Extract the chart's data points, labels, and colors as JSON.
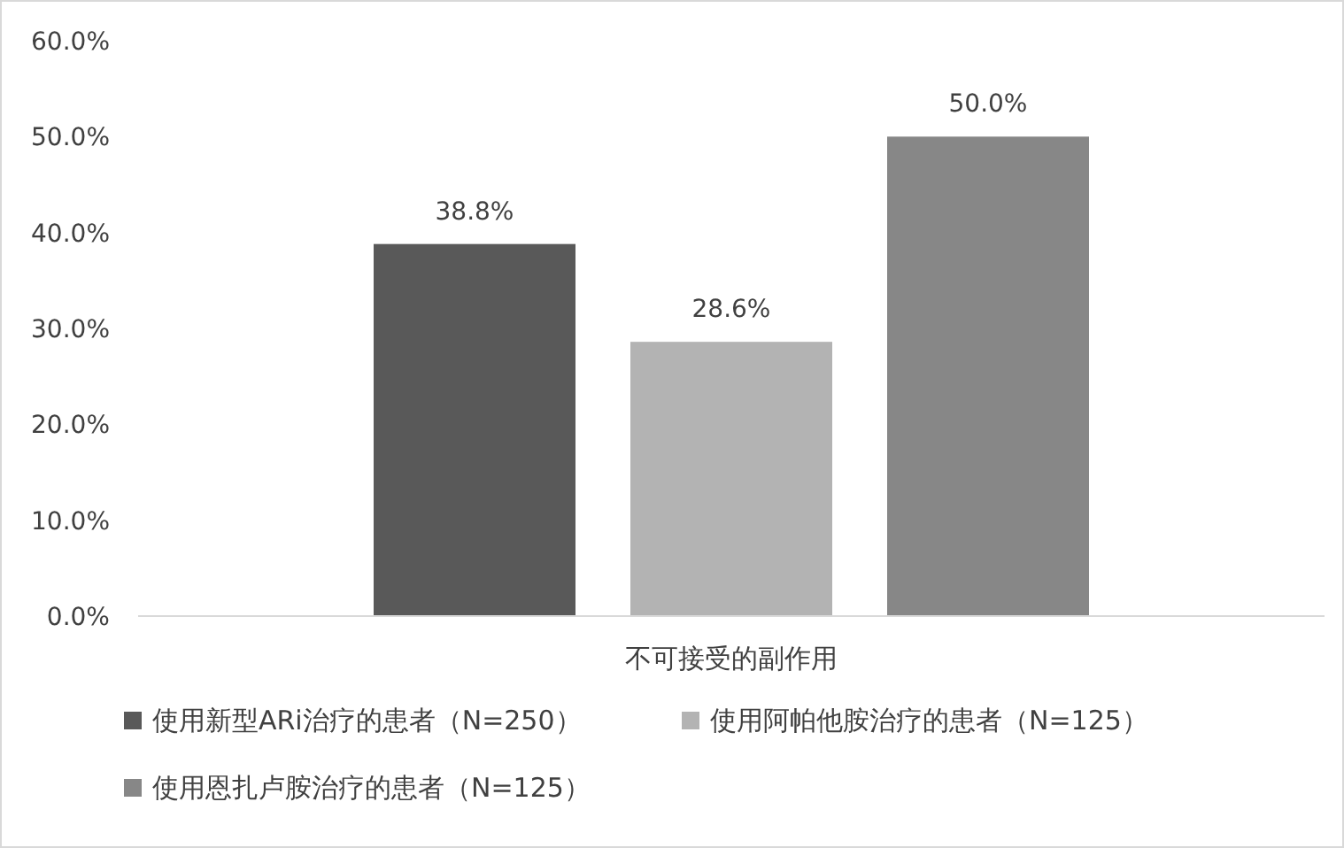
{
  "chart_data": {
    "type": "bar",
    "categories": [
      "不可接受的副作用"
    ],
    "series": [
      {
        "name": "使用新型ARi治疗的患者（N=250）",
        "color": "#595959",
        "values": [
          38.8
        ],
        "value_labels": [
          "38.8%"
        ]
      },
      {
        "name": "使用阿帕他胺治疗的患者（N=125）",
        "color": "#b3b3b3",
        "values": [
          28.6
        ],
        "value_labels": [
          "28.6%"
        ]
      },
      {
        "name": "使用恩扎卢胺治疗的患者（N=125）",
        "color": "#878787",
        "values": [
          50.0
        ],
        "value_labels": [
          "50.0%"
        ]
      }
    ],
    "ylim": [
      0,
      60
    ],
    "yticks": [
      {
        "value": 0,
        "label": "0.0%"
      },
      {
        "value": 10,
        "label": "10.0%"
      },
      {
        "value": 20,
        "label": "20.0%"
      },
      {
        "value": 30,
        "label": "30.0%"
      },
      {
        "value": 40,
        "label": "40.0%"
      },
      {
        "value": 50,
        "label": "50.0%"
      },
      {
        "value": 60,
        "label": "60.0%"
      }
    ],
    "grid": false,
    "legend": "bottom"
  }
}
